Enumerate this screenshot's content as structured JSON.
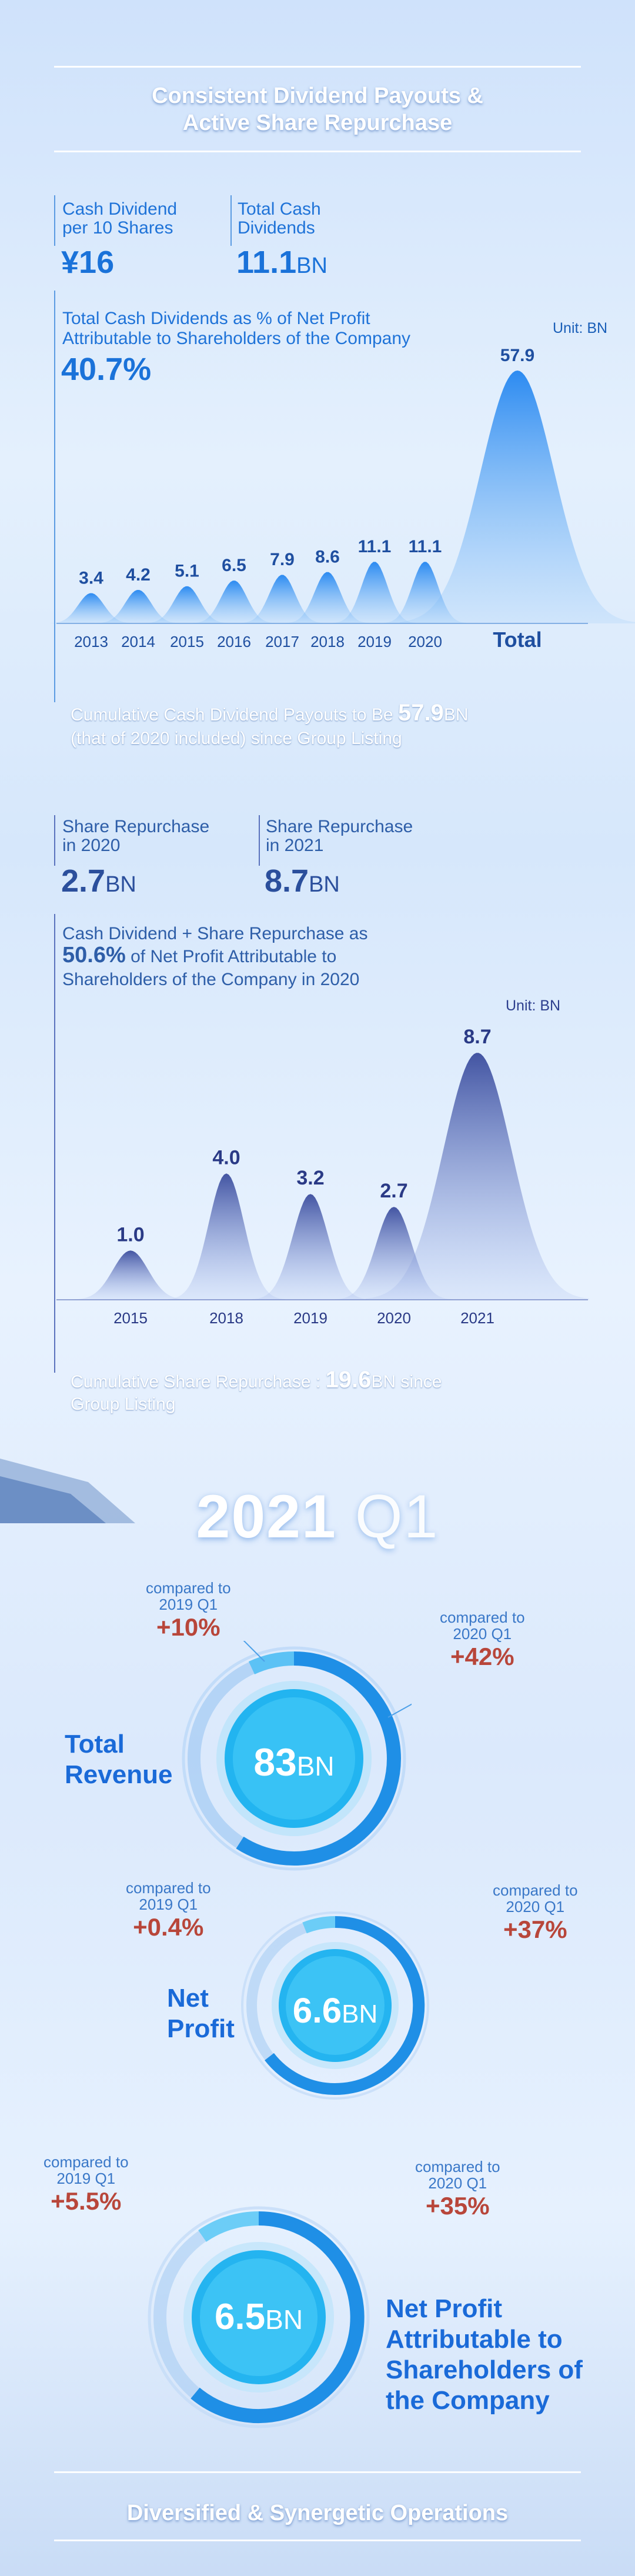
{
  "header": {
    "title_line1": "Consistent Dividend Payouts &",
    "title_line2": "Active Share Repurchase"
  },
  "dividend": {
    "kpi1_label_l1": "Cash Dividend",
    "kpi1_label_l2": "per 10 Shares",
    "kpi1_value": "¥16",
    "kpi2_label_l1": "Total Cash",
    "kpi2_label_l2": "Dividends",
    "kpi2_value": "11.1",
    "kpi2_unit": "BN",
    "pct_label_l1": "Total Cash Dividends as % of Net Profit",
    "pct_label_l2": "Attributable to Shareholders of the Company",
    "pct_value": "40.7%",
    "unit_note": "Unit: BN",
    "cumulative_l1_pre": "Cumulative Cash Dividend Payouts to Be ",
    "cumulative_value": "57.9",
    "cumulative_l1_post": "BN",
    "cumulative_l2": "(that of 2020 included) since Group Listing"
  },
  "repurchase": {
    "kpi1_label_l1": "Share Repurchase",
    "kpi1_label_l2": "in 2020",
    "kpi1_value": "2.7",
    "kpi1_unit": "BN",
    "kpi2_label_l1": "Share Repurchase",
    "kpi2_label_l2": "in 2021",
    "kpi2_value": "8.7",
    "kpi2_unit": "BN",
    "pct_label_l1": "Cash Dividend + Share Repurchase as",
    "pct_value": "50.6%",
    "pct_label_l2_post": " of Net Profit Attributable to",
    "pct_label_l3": "Shareholders of the Company in 2020",
    "unit_note": "Unit: BN",
    "cumulative_l1_pre": "Cumulative Share Repurchase : ",
    "cumulative_value": "19.6",
    "cumulative_l1_post": "BN since",
    "cumulative_l2": "Group Listing"
  },
  "q1": {
    "title_bold": "2021",
    "title_light": " Q1",
    "metrics": [
      {
        "label_l1": "Total",
        "label_l2": "Revenue",
        "label_l3": "",
        "label_l4": "",
        "value": "83",
        "unit": "BN",
        "cmp_left_t1": "compared to",
        "cmp_left_t2": "2019 Q1",
        "cmp_left_v": "+10%",
        "cmp_right_t1": "compared to",
        "cmp_right_t2": "2020 Q1",
        "cmp_right_v": "+42%"
      },
      {
        "label_l1": "Net",
        "label_l2": "Profit",
        "label_l3": "",
        "label_l4": "",
        "value": "6.6",
        "unit": "BN",
        "cmp_left_t1": "compared to",
        "cmp_left_t2": "2019 Q1",
        "cmp_left_v": "+0.4%",
        "cmp_right_t1": "compared to",
        "cmp_right_t2": "2020 Q1",
        "cmp_right_v": "+37%"
      },
      {
        "label_l1": "Net Profit",
        "label_l2": "Attributable to",
        "label_l3": "Shareholders of",
        "label_l4": "the Company",
        "value": "6.5",
        "unit": "BN",
        "cmp_left_t1": "compared to",
        "cmp_left_t2": "2019 Q1",
        "cmp_left_v": "+5.5%",
        "cmp_right_t1": "compared to",
        "cmp_right_t2": "2020 Q1",
        "cmp_right_v": "+35%"
      }
    ]
  },
  "footer": {
    "title": "Diversified & Synergetic Operations"
  },
  "colors": {
    "primary_blue": "#1a72d9",
    "dark_blue": "#2b4f9c",
    "positive_red": "#b8463a"
  },
  "chart_data": [
    {
      "type": "area",
      "categories": [
        "2013",
        "2014",
        "2015",
        "2016",
        "2017",
        "2018",
        "2019",
        "2020",
        "Total"
      ],
      "values": [
        3.4,
        4.2,
        5.1,
        6.5,
        7.9,
        8.6,
        11.1,
        11.1,
        57.9
      ],
      "value_labels": [
        "3.4",
        "4.2",
        "5.1",
        "6.5",
        "7.9",
        "8.6",
        "11.1",
        "11.1",
        "57.9"
      ],
      "unit": "Unit: BN",
      "ylim": [
        0,
        57.9
      ],
      "grid": false
    },
    {
      "type": "area",
      "categories": [
        "2015",
        "2018",
        "2019",
        "2020",
        "2021"
      ],
      "values": [
        1.0,
        4.0,
        3.2,
        2.7,
        8.7
      ],
      "value_labels": [
        "1.0",
        "4.0",
        "3.2",
        "2.7",
        "8.7"
      ],
      "unit": "Unit: BN",
      "ylim": [
        0,
        8.7
      ],
      "grid": false
    }
  ]
}
